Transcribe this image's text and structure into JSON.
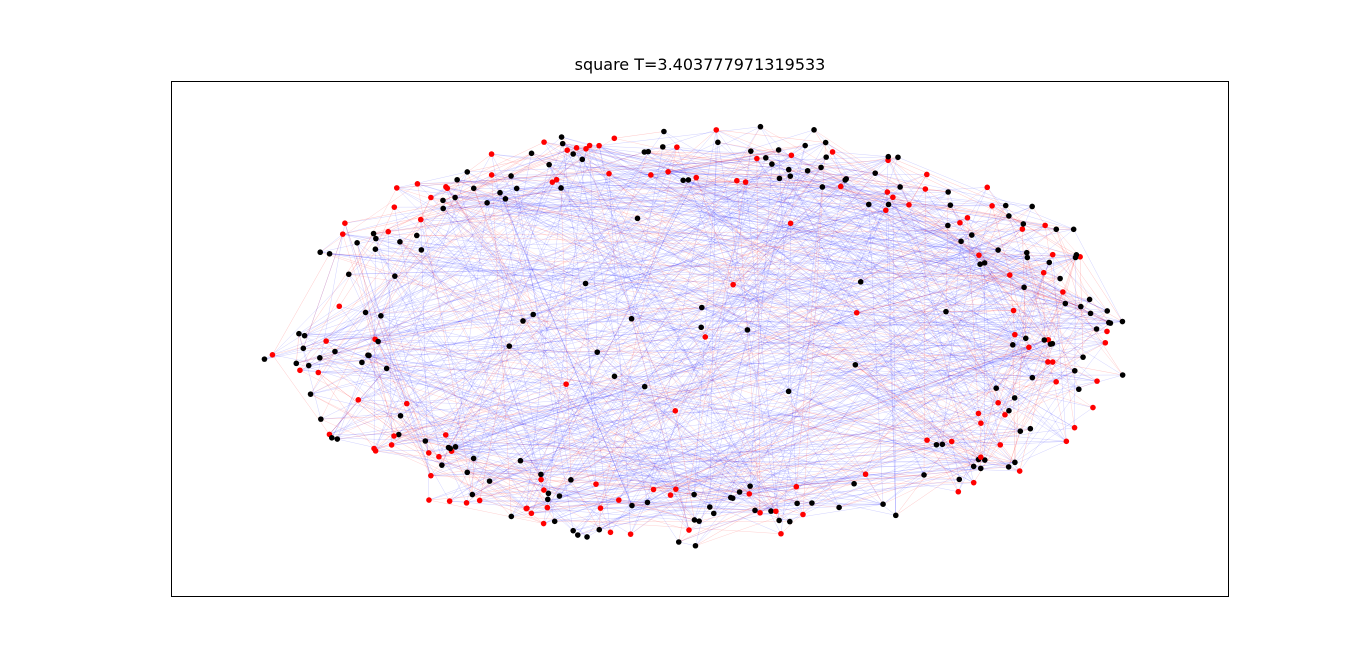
{
  "title": "square T=3.403777971319533",
  "colors": {
    "group_a_node": "#000000",
    "group_b_node": "#ff0000",
    "edge_red": "#ff0000",
    "edge_blue": "#0000ff",
    "frame": "#000000"
  },
  "graph": {
    "layout": "ring (square-lattice style network)",
    "node_groups": [
      "black",
      "red"
    ],
    "axes_ticks_visible": false
  }
}
